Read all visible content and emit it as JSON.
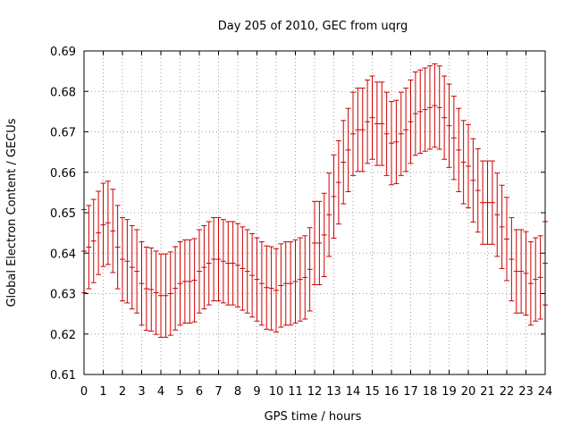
{
  "chart_data": {
    "type": "line",
    "title": "Day 205 of 2010, GEC from uqrg",
    "xlabel": "GPS time / hours",
    "ylabel": "Global Electron Content / GECUs",
    "xlim": [
      0,
      24
    ],
    "ylim": [
      0.61,
      0.69
    ],
    "xticks": [
      "0",
      "1",
      "2",
      "3",
      "4",
      "5",
      "6",
      "7",
      "8",
      "9",
      "10",
      "11",
      "12",
      "13",
      "14",
      "15",
      "16",
      "17",
      "18",
      "19",
      "20",
      "21",
      "22",
      "23",
      "24"
    ],
    "yticks": [
      "0.61",
      "0.62",
      "0.63",
      "0.64",
      "0.65",
      "0.66",
      "0.67",
      "0.68",
      "0.69"
    ],
    "grid": true,
    "legend": "none",
    "error_bars": true,
    "color": "#cc0000",
    "series": [
      {
        "x": [
          0.0,
          0.25,
          0.5,
          0.75,
          1.0,
          1.25,
          1.5,
          1.75,
          2.0,
          2.25,
          2.5,
          2.75,
          3.0,
          3.25,
          3.5,
          3.75,
          4.0,
          4.25,
          4.5,
          4.75,
          5.0,
          5.25,
          5.5,
          5.75,
          6.0,
          6.25,
          6.5,
          6.75,
          7.0,
          7.25,
          7.5,
          7.75,
          8.0,
          8.25,
          8.5,
          8.75,
          9.0,
          9.25,
          9.5,
          9.75,
          10.0,
          10.25,
          10.5,
          10.75,
          11.0,
          11.25,
          11.5,
          11.75,
          12.0,
          12.25,
          12.5,
          12.75,
          13.0,
          13.25,
          13.5,
          13.75,
          14.0,
          14.25,
          14.5,
          14.75,
          15.0,
          15.25,
          15.5,
          15.75,
          16.0,
          16.25,
          16.5,
          16.75,
          17.0,
          17.25,
          17.5,
          17.75,
          18.0,
          18.25,
          18.5,
          18.75,
          19.0,
          19.25,
          19.5,
          19.75,
          20.0,
          20.25,
          20.5,
          20.75,
          21.0,
          21.25,
          21.5,
          21.75,
          22.0,
          22.25,
          22.5,
          22.75,
          23.0,
          23.25,
          23.5,
          23.75,
          24.0
        ],
        "y": [
          0.6405,
          0.6415,
          0.643,
          0.645,
          0.647,
          0.6475,
          0.6455,
          0.6415,
          0.6385,
          0.638,
          0.6365,
          0.6355,
          0.6325,
          0.6312,
          0.631,
          0.6302,
          0.6295,
          0.6295,
          0.63,
          0.6313,
          0.6325,
          0.633,
          0.633,
          0.6333,
          0.6355,
          0.6365,
          0.6375,
          0.6385,
          0.6385,
          0.638,
          0.6375,
          0.6375,
          0.637,
          0.6362,
          0.6355,
          0.6345,
          0.6335,
          0.6325,
          0.6315,
          0.6313,
          0.6308,
          0.632,
          0.6325,
          0.6325,
          0.633,
          0.6335,
          0.634,
          0.636,
          0.6425,
          0.6425,
          0.6445,
          0.6495,
          0.654,
          0.6575,
          0.6625,
          0.6655,
          0.6695,
          0.6705,
          0.6705,
          0.6725,
          0.6735,
          0.672,
          0.672,
          0.6695,
          0.6672,
          0.6675,
          0.6695,
          0.6705,
          0.6725,
          0.6745,
          0.675,
          0.6755,
          0.676,
          0.6765,
          0.676,
          0.6735,
          0.6715,
          0.6685,
          0.6655,
          0.6625,
          0.6615,
          0.658,
          0.6555,
          0.6525,
          0.6525,
          0.6525,
          0.6495,
          0.6465,
          0.6435,
          0.6385,
          0.6355,
          0.6355,
          0.635,
          0.6325,
          0.6335,
          0.634,
          0.6375
        ],
        "err": [
          0.0103,
          0.0103,
          0.0103,
          0.0103,
          0.0103,
          0.0103,
          0.0103,
          0.0103,
          0.0103,
          0.0103,
          0.0103,
          0.0103,
          0.0103,
          0.0103,
          0.0103,
          0.0103,
          0.0103,
          0.0103,
          0.0103,
          0.0103,
          0.0103,
          0.0103,
          0.0103,
          0.0103,
          0.0103,
          0.0103,
          0.0103,
          0.0103,
          0.0103,
          0.0103,
          0.0103,
          0.0103,
          0.0103,
          0.0103,
          0.0103,
          0.0103,
          0.0103,
          0.0103,
          0.0103,
          0.0103,
          0.0103,
          0.0103,
          0.0103,
          0.0103,
          0.0103,
          0.0103,
          0.0103,
          0.0103,
          0.0103,
          0.0103,
          0.0103,
          0.0103,
          0.0103,
          0.0103,
          0.0103,
          0.0103,
          0.0103,
          0.0103,
          0.0103,
          0.0103,
          0.0103,
          0.0103,
          0.0103,
          0.0103,
          0.0103,
          0.0103,
          0.0103,
          0.0103,
          0.0103,
          0.0103,
          0.0103,
          0.0103,
          0.0103,
          0.0103,
          0.0103,
          0.0103,
          0.0103,
          0.0103,
          0.0103,
          0.0103,
          0.0103,
          0.0103,
          0.0103,
          0.0103,
          0.0103,
          0.0103,
          0.0103,
          0.0103,
          0.0103,
          0.0103,
          0.0103,
          0.0103,
          0.0103,
          0.0103,
          0.0103,
          0.0103,
          0.0103
        ]
      }
    ]
  }
}
